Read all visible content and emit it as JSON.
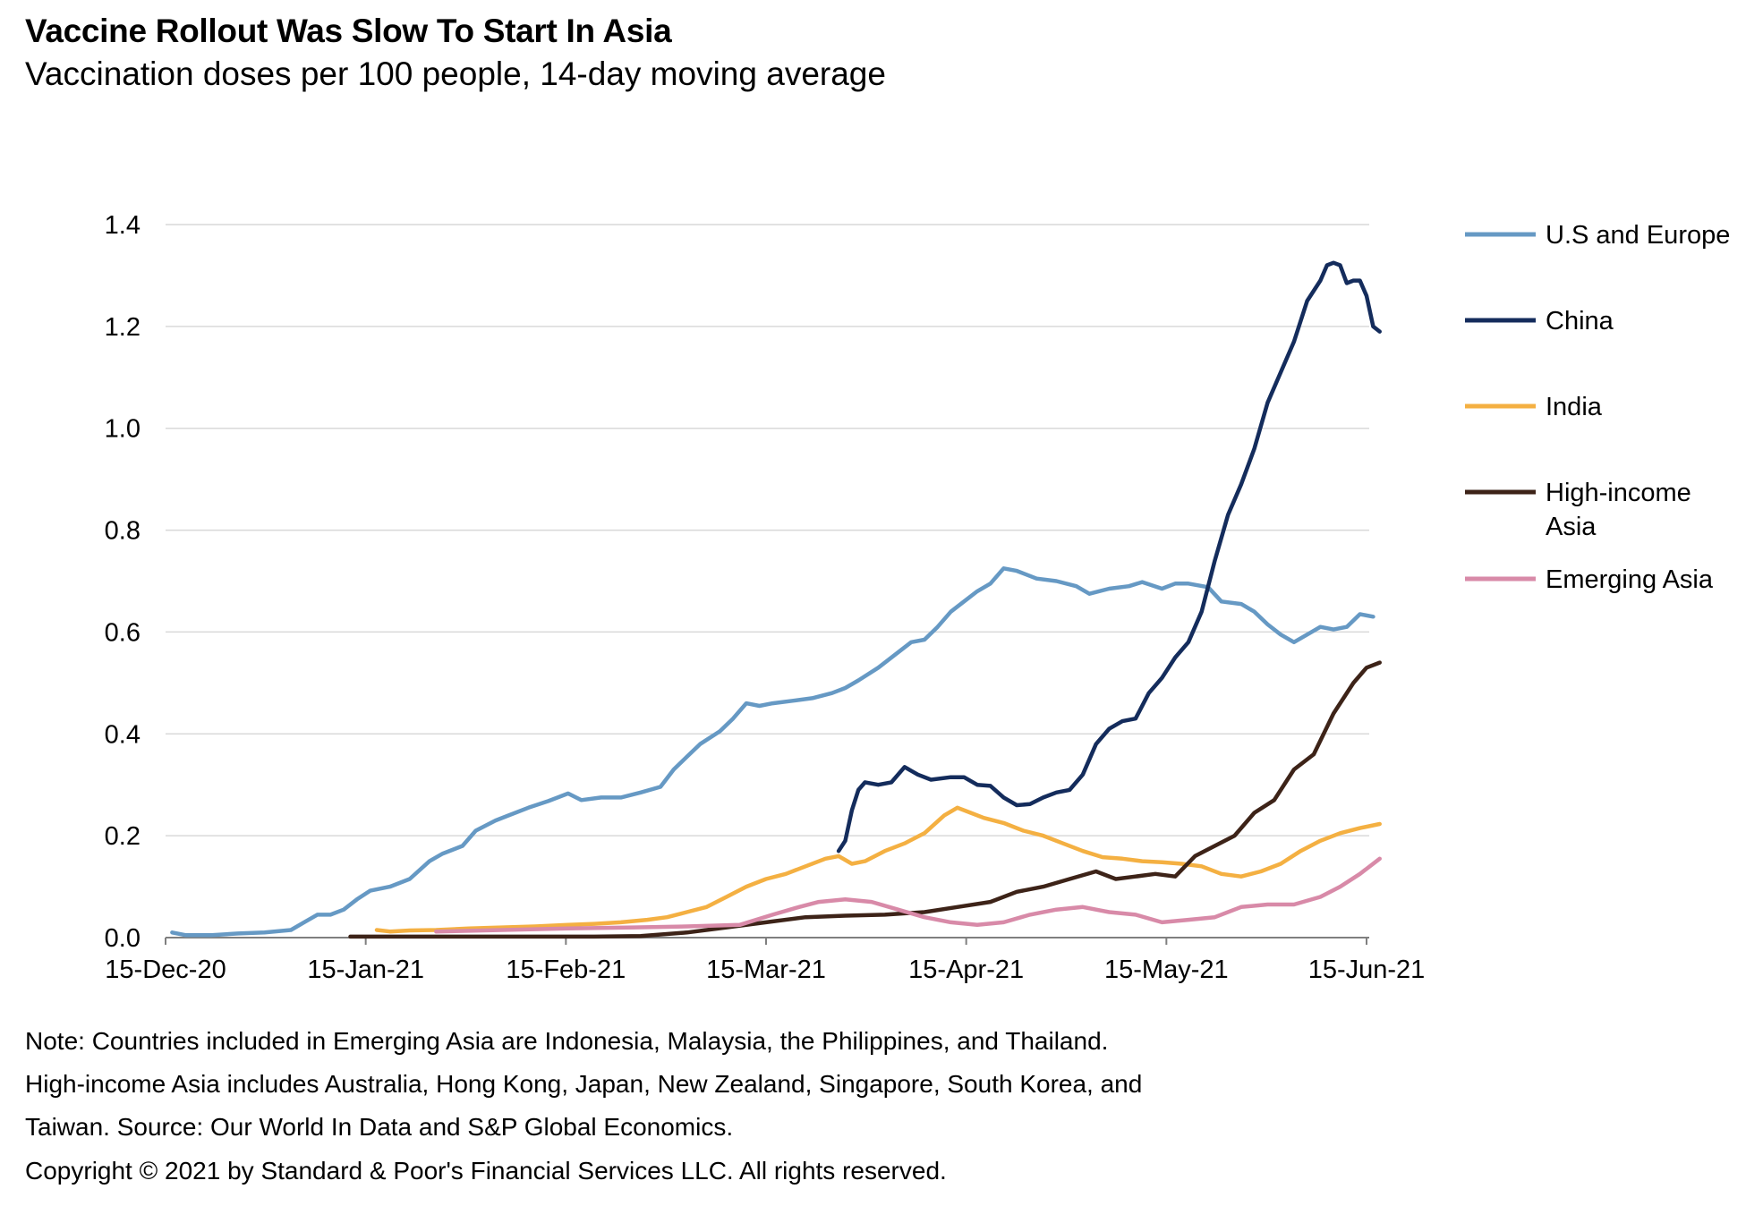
{
  "title": "Vaccine Rollout Was Slow To Start In Asia",
  "subtitle": "Vaccination doses per 100 people, 14-day moving average",
  "notes": [
    "Note: Countries included in Emerging Asia are Indonesia, Malaysia, the Philippines, and Thailand.",
    "High-income Asia includes Australia, Hong Kong, Japan, New Zealand, Singapore, South Korea, and",
    "Taiwan. Source: Our World In Data and S&P Global Economics.",
    "Copyright © 2021 by Standard & Poor's Financial Services LLC. All rights reserved."
  ],
  "chart_data": {
    "type": "line",
    "title": "Vaccine Rollout Was Slow To Start In Asia",
    "subtitle": "Vaccination doses per 100 people, 14-day moving average",
    "xlabel": "",
    "ylabel": "",
    "x_ticks": [
      "15-Dec-20",
      "15-Jan-21",
      "15-Feb-21",
      "15-Mar-21",
      "15-Apr-21",
      "15-May-21",
      "15-Jun-21"
    ],
    "x_range": [
      "2020-12-15",
      "2021-06-15"
    ],
    "ylim": [
      0,
      1.4
    ],
    "y_ticks": [
      "0.0",
      "0.2",
      "0.4",
      "0.6",
      "0.8",
      "1.0",
      "1.2",
      "1.4"
    ],
    "grid": "horizontal",
    "legend_position": "right",
    "series": [
      {
        "name": "U.S and Europe",
        "color": "#6699c4",
        "points": [
          [
            "2020-12-16",
            0.01
          ],
          [
            "2020-12-18",
            0.005
          ],
          [
            "2020-12-22",
            0.005
          ],
          [
            "2020-12-26",
            0.008
          ],
          [
            "2020-12-30",
            0.01
          ],
          [
            "2021-01-03",
            0.015
          ],
          [
            "2021-01-05",
            0.03
          ],
          [
            "2021-01-07",
            0.045
          ],
          [
            "2021-01-09",
            0.045
          ],
          [
            "2021-01-11",
            0.055
          ],
          [
            "2021-01-13",
            0.075
          ],
          [
            "2021-01-15",
            0.092
          ],
          [
            "2021-01-18",
            0.1
          ],
          [
            "2021-01-21",
            0.115
          ],
          [
            "2021-01-24",
            0.15
          ],
          [
            "2021-01-26",
            0.165
          ],
          [
            "2021-01-29",
            0.18
          ],
          [
            "2021-01-31",
            0.21
          ],
          [
            "2021-02-03",
            0.23
          ],
          [
            "2021-02-05",
            0.24
          ],
          [
            "2021-02-08",
            0.255
          ],
          [
            "2021-02-11",
            0.268
          ],
          [
            "2021-02-14",
            0.283
          ],
          [
            "2021-02-16",
            0.27
          ],
          [
            "2021-02-19",
            0.275
          ],
          [
            "2021-02-22",
            0.275
          ],
          [
            "2021-02-25",
            0.285
          ],
          [
            "2021-02-28",
            0.296
          ],
          [
            "2021-03-02",
            0.33
          ],
          [
            "2021-03-04",
            0.355
          ],
          [
            "2021-03-06",
            0.38
          ],
          [
            "2021-03-09",
            0.405
          ],
          [
            "2021-03-11",
            0.43
          ],
          [
            "2021-03-13",
            0.46
          ],
          [
            "2021-03-15",
            0.455
          ],
          [
            "2021-03-17",
            0.46
          ],
          [
            "2021-03-20",
            0.465
          ],
          [
            "2021-03-23",
            0.47
          ],
          [
            "2021-03-26",
            0.48
          ],
          [
            "2021-03-28",
            0.49
          ],
          [
            "2021-03-30",
            0.505
          ],
          [
            "2021-04-02",
            0.53
          ],
          [
            "2021-04-05",
            0.56
          ],
          [
            "2021-04-07",
            0.58
          ],
          [
            "2021-04-09",
            0.585
          ],
          [
            "2021-04-11",
            0.61
          ],
          [
            "2021-04-13",
            0.64
          ],
          [
            "2021-04-15",
            0.66
          ],
          [
            "2021-04-17",
            0.68
          ],
          [
            "2021-04-19",
            0.695
          ],
          [
            "2021-04-21",
            0.725
          ],
          [
            "2021-04-23",
            0.72
          ],
          [
            "2021-04-26",
            0.705
          ],
          [
            "2021-04-29",
            0.7
          ],
          [
            "2021-05-02",
            0.69
          ],
          [
            "2021-05-04",
            0.675
          ],
          [
            "2021-05-07",
            0.685
          ],
          [
            "2021-05-10",
            0.69
          ],
          [
            "2021-05-12",
            0.698
          ],
          [
            "2021-05-15",
            0.685
          ],
          [
            "2021-05-17",
            0.695
          ],
          [
            "2021-05-19",
            0.695
          ],
          [
            "2021-05-22",
            0.688
          ],
          [
            "2021-05-24",
            0.66
          ],
          [
            "2021-05-27",
            0.655
          ],
          [
            "2021-05-29",
            0.64
          ],
          [
            "2021-05-31",
            0.615
          ],
          [
            "2021-06-02",
            0.595
          ],
          [
            "2021-06-04",
            0.58
          ],
          [
            "2021-06-06",
            0.595
          ],
          [
            "2021-06-08",
            0.61
          ],
          [
            "2021-06-10",
            0.605
          ],
          [
            "2021-06-12",
            0.61
          ],
          [
            "2021-06-14",
            0.635
          ],
          [
            "2021-06-16",
            0.63
          ]
        ]
      },
      {
        "name": "China",
        "color": "#142c5c",
        "points": [
          [
            "2021-03-27",
            0.17
          ],
          [
            "2021-03-28",
            0.19
          ],
          [
            "2021-03-29",
            0.25
          ],
          [
            "2021-03-30",
            0.29
          ],
          [
            "2021-03-31",
            0.305
          ],
          [
            "2021-04-02",
            0.3
          ],
          [
            "2021-04-04",
            0.305
          ],
          [
            "2021-04-06",
            0.335
          ],
          [
            "2021-04-08",
            0.32
          ],
          [
            "2021-04-10",
            0.31
          ],
          [
            "2021-04-13",
            0.315
          ],
          [
            "2021-04-15",
            0.315
          ],
          [
            "2021-04-17",
            0.3
          ],
          [
            "2021-04-19",
            0.298
          ],
          [
            "2021-04-21",
            0.275
          ],
          [
            "2021-04-23",
            0.26
          ],
          [
            "2021-04-25",
            0.262
          ],
          [
            "2021-04-27",
            0.275
          ],
          [
            "2021-04-29",
            0.285
          ],
          [
            "2021-05-01",
            0.29
          ],
          [
            "2021-05-03",
            0.32
          ],
          [
            "2021-05-05",
            0.38
          ],
          [
            "2021-05-07",
            0.41
          ],
          [
            "2021-05-09",
            0.425
          ],
          [
            "2021-05-11",
            0.43
          ],
          [
            "2021-05-13",
            0.48
          ],
          [
            "2021-05-15",
            0.51
          ],
          [
            "2021-05-17",
            0.55
          ],
          [
            "2021-05-19",
            0.58
          ],
          [
            "2021-05-21",
            0.64
          ],
          [
            "2021-05-23",
            0.74
          ],
          [
            "2021-05-25",
            0.83
          ],
          [
            "2021-05-27",
            0.89
          ],
          [
            "2021-05-29",
            0.96
          ],
          [
            "2021-05-31",
            1.05
          ],
          [
            "2021-06-02",
            1.11
          ],
          [
            "2021-06-04",
            1.17
          ],
          [
            "2021-06-06",
            1.25
          ],
          [
            "2021-06-08",
            1.29
          ],
          [
            "2021-06-09",
            1.32
          ],
          [
            "2021-06-10",
            1.325
          ],
          [
            "2021-06-11",
            1.32
          ],
          [
            "2021-06-12",
            1.285
          ],
          [
            "2021-06-13",
            1.29
          ],
          [
            "2021-06-14",
            1.29
          ],
          [
            "2021-06-15",
            1.26
          ],
          [
            "2021-06-16",
            1.2
          ],
          [
            "2021-06-17",
            1.19
          ]
        ]
      },
      {
        "name": "India",
        "color": "#f4b042",
        "points": [
          [
            "2021-01-16",
            0.015
          ],
          [
            "2021-01-18",
            0.012
          ],
          [
            "2021-01-21",
            0.014
          ],
          [
            "2021-01-25",
            0.015
          ],
          [
            "2021-01-30",
            0.018
          ],
          [
            "2021-02-04",
            0.02
          ],
          [
            "2021-02-09",
            0.022
          ],
          [
            "2021-02-14",
            0.025
          ],
          [
            "2021-02-18",
            0.027
          ],
          [
            "2021-02-22",
            0.03
          ],
          [
            "2021-02-26",
            0.035
          ],
          [
            "2021-03-01",
            0.04
          ],
          [
            "2021-03-04",
            0.05
          ],
          [
            "2021-03-07",
            0.06
          ],
          [
            "2021-03-10",
            0.08
          ],
          [
            "2021-03-13",
            0.1
          ],
          [
            "2021-03-16",
            0.115
          ],
          [
            "2021-03-19",
            0.125
          ],
          [
            "2021-03-22",
            0.14
          ],
          [
            "2021-03-25",
            0.155
          ],
          [
            "2021-03-27",
            0.16
          ],
          [
            "2021-03-29",
            0.145
          ],
          [
            "2021-03-31",
            0.15
          ],
          [
            "2021-04-03",
            0.17
          ],
          [
            "2021-04-06",
            0.185
          ],
          [
            "2021-04-09",
            0.205
          ],
          [
            "2021-04-12",
            0.24
          ],
          [
            "2021-04-14",
            0.255
          ],
          [
            "2021-04-16",
            0.245
          ],
          [
            "2021-04-18",
            0.235
          ],
          [
            "2021-04-21",
            0.225
          ],
          [
            "2021-04-24",
            0.21
          ],
          [
            "2021-04-27",
            0.2
          ],
          [
            "2021-04-30",
            0.185
          ],
          [
            "2021-05-03",
            0.17
          ],
          [
            "2021-05-06",
            0.158
          ],
          [
            "2021-05-09",
            0.155
          ],
          [
            "2021-05-12",
            0.15
          ],
          [
            "2021-05-15",
            0.148
          ],
          [
            "2021-05-18",
            0.145
          ],
          [
            "2021-05-21",
            0.14
          ],
          [
            "2021-05-24",
            0.125
          ],
          [
            "2021-05-27",
            0.12
          ],
          [
            "2021-05-30",
            0.13
          ],
          [
            "2021-06-02",
            0.145
          ],
          [
            "2021-06-05",
            0.17
          ],
          [
            "2021-06-08",
            0.19
          ],
          [
            "2021-06-11",
            0.205
          ],
          [
            "2021-06-14",
            0.215
          ],
          [
            "2021-06-17",
            0.223
          ]
        ]
      },
      {
        "name": "High-income Asia",
        "color": "#3d2318",
        "points": [
          [
            "2021-01-12",
            0.002
          ],
          [
            "2021-01-20",
            0.002
          ],
          [
            "2021-01-24",
            0.002
          ],
          [
            "2021-02-18",
            0.002
          ],
          [
            "2021-02-25",
            0.003
          ],
          [
            "2021-03-04",
            0.01
          ],
          [
            "2021-03-10",
            0.02
          ],
          [
            "2021-03-16",
            0.03
          ],
          [
            "2021-03-22",
            0.04
          ],
          [
            "2021-03-28",
            0.043
          ],
          [
            "2021-04-03",
            0.045
          ],
          [
            "2021-04-09",
            0.05
          ],
          [
            "2021-04-14",
            0.06
          ],
          [
            "2021-04-19",
            0.07
          ],
          [
            "2021-04-23",
            0.09
          ],
          [
            "2021-04-27",
            0.1
          ],
          [
            "2021-05-01",
            0.115
          ],
          [
            "2021-05-05",
            0.13
          ],
          [
            "2021-05-08",
            0.115
          ],
          [
            "2021-05-11",
            0.12
          ],
          [
            "2021-05-14",
            0.125
          ],
          [
            "2021-05-17",
            0.12
          ],
          [
            "2021-05-20",
            0.16
          ],
          [
            "2021-05-23",
            0.18
          ],
          [
            "2021-05-26",
            0.2
          ],
          [
            "2021-05-29",
            0.245
          ],
          [
            "2021-06-01",
            0.27
          ],
          [
            "2021-06-04",
            0.33
          ],
          [
            "2021-06-07",
            0.36
          ],
          [
            "2021-06-10",
            0.44
          ],
          [
            "2021-06-13",
            0.5
          ],
          [
            "2021-06-15",
            0.53
          ],
          [
            "2021-06-17",
            0.54
          ]
        ]
      },
      {
        "name": "Emerging Asia",
        "color": "#d88aa8",
        "points": [
          [
            "2021-01-25",
            0.012
          ],
          [
            "2021-02-04",
            0.015
          ],
          [
            "2021-02-14",
            0.018
          ],
          [
            "2021-02-24",
            0.02
          ],
          [
            "2021-03-04",
            0.022
          ],
          [
            "2021-03-12",
            0.025
          ],
          [
            "2021-03-17",
            0.045
          ],
          [
            "2021-03-21",
            0.06
          ],
          [
            "2021-03-24",
            0.07
          ],
          [
            "2021-03-28",
            0.075
          ],
          [
            "2021-04-01",
            0.07
          ],
          [
            "2021-04-05",
            0.055
          ],
          [
            "2021-04-09",
            0.04
          ],
          [
            "2021-04-13",
            0.03
          ],
          [
            "2021-04-17",
            0.025
          ],
          [
            "2021-04-21",
            0.03
          ],
          [
            "2021-04-25",
            0.045
          ],
          [
            "2021-04-29",
            0.055
          ],
          [
            "2021-05-03",
            0.06
          ],
          [
            "2021-05-07",
            0.05
          ],
          [
            "2021-05-11",
            0.045
          ],
          [
            "2021-05-15",
            0.03
          ],
          [
            "2021-05-19",
            0.035
          ],
          [
            "2021-05-23",
            0.04
          ],
          [
            "2021-05-27",
            0.06
          ],
          [
            "2021-05-31",
            0.065
          ],
          [
            "2021-06-04",
            0.065
          ],
          [
            "2021-06-08",
            0.08
          ],
          [
            "2021-06-11",
            0.1
          ],
          [
            "2021-06-14",
            0.125
          ],
          [
            "2021-06-17",
            0.155
          ]
        ]
      }
    ]
  }
}
